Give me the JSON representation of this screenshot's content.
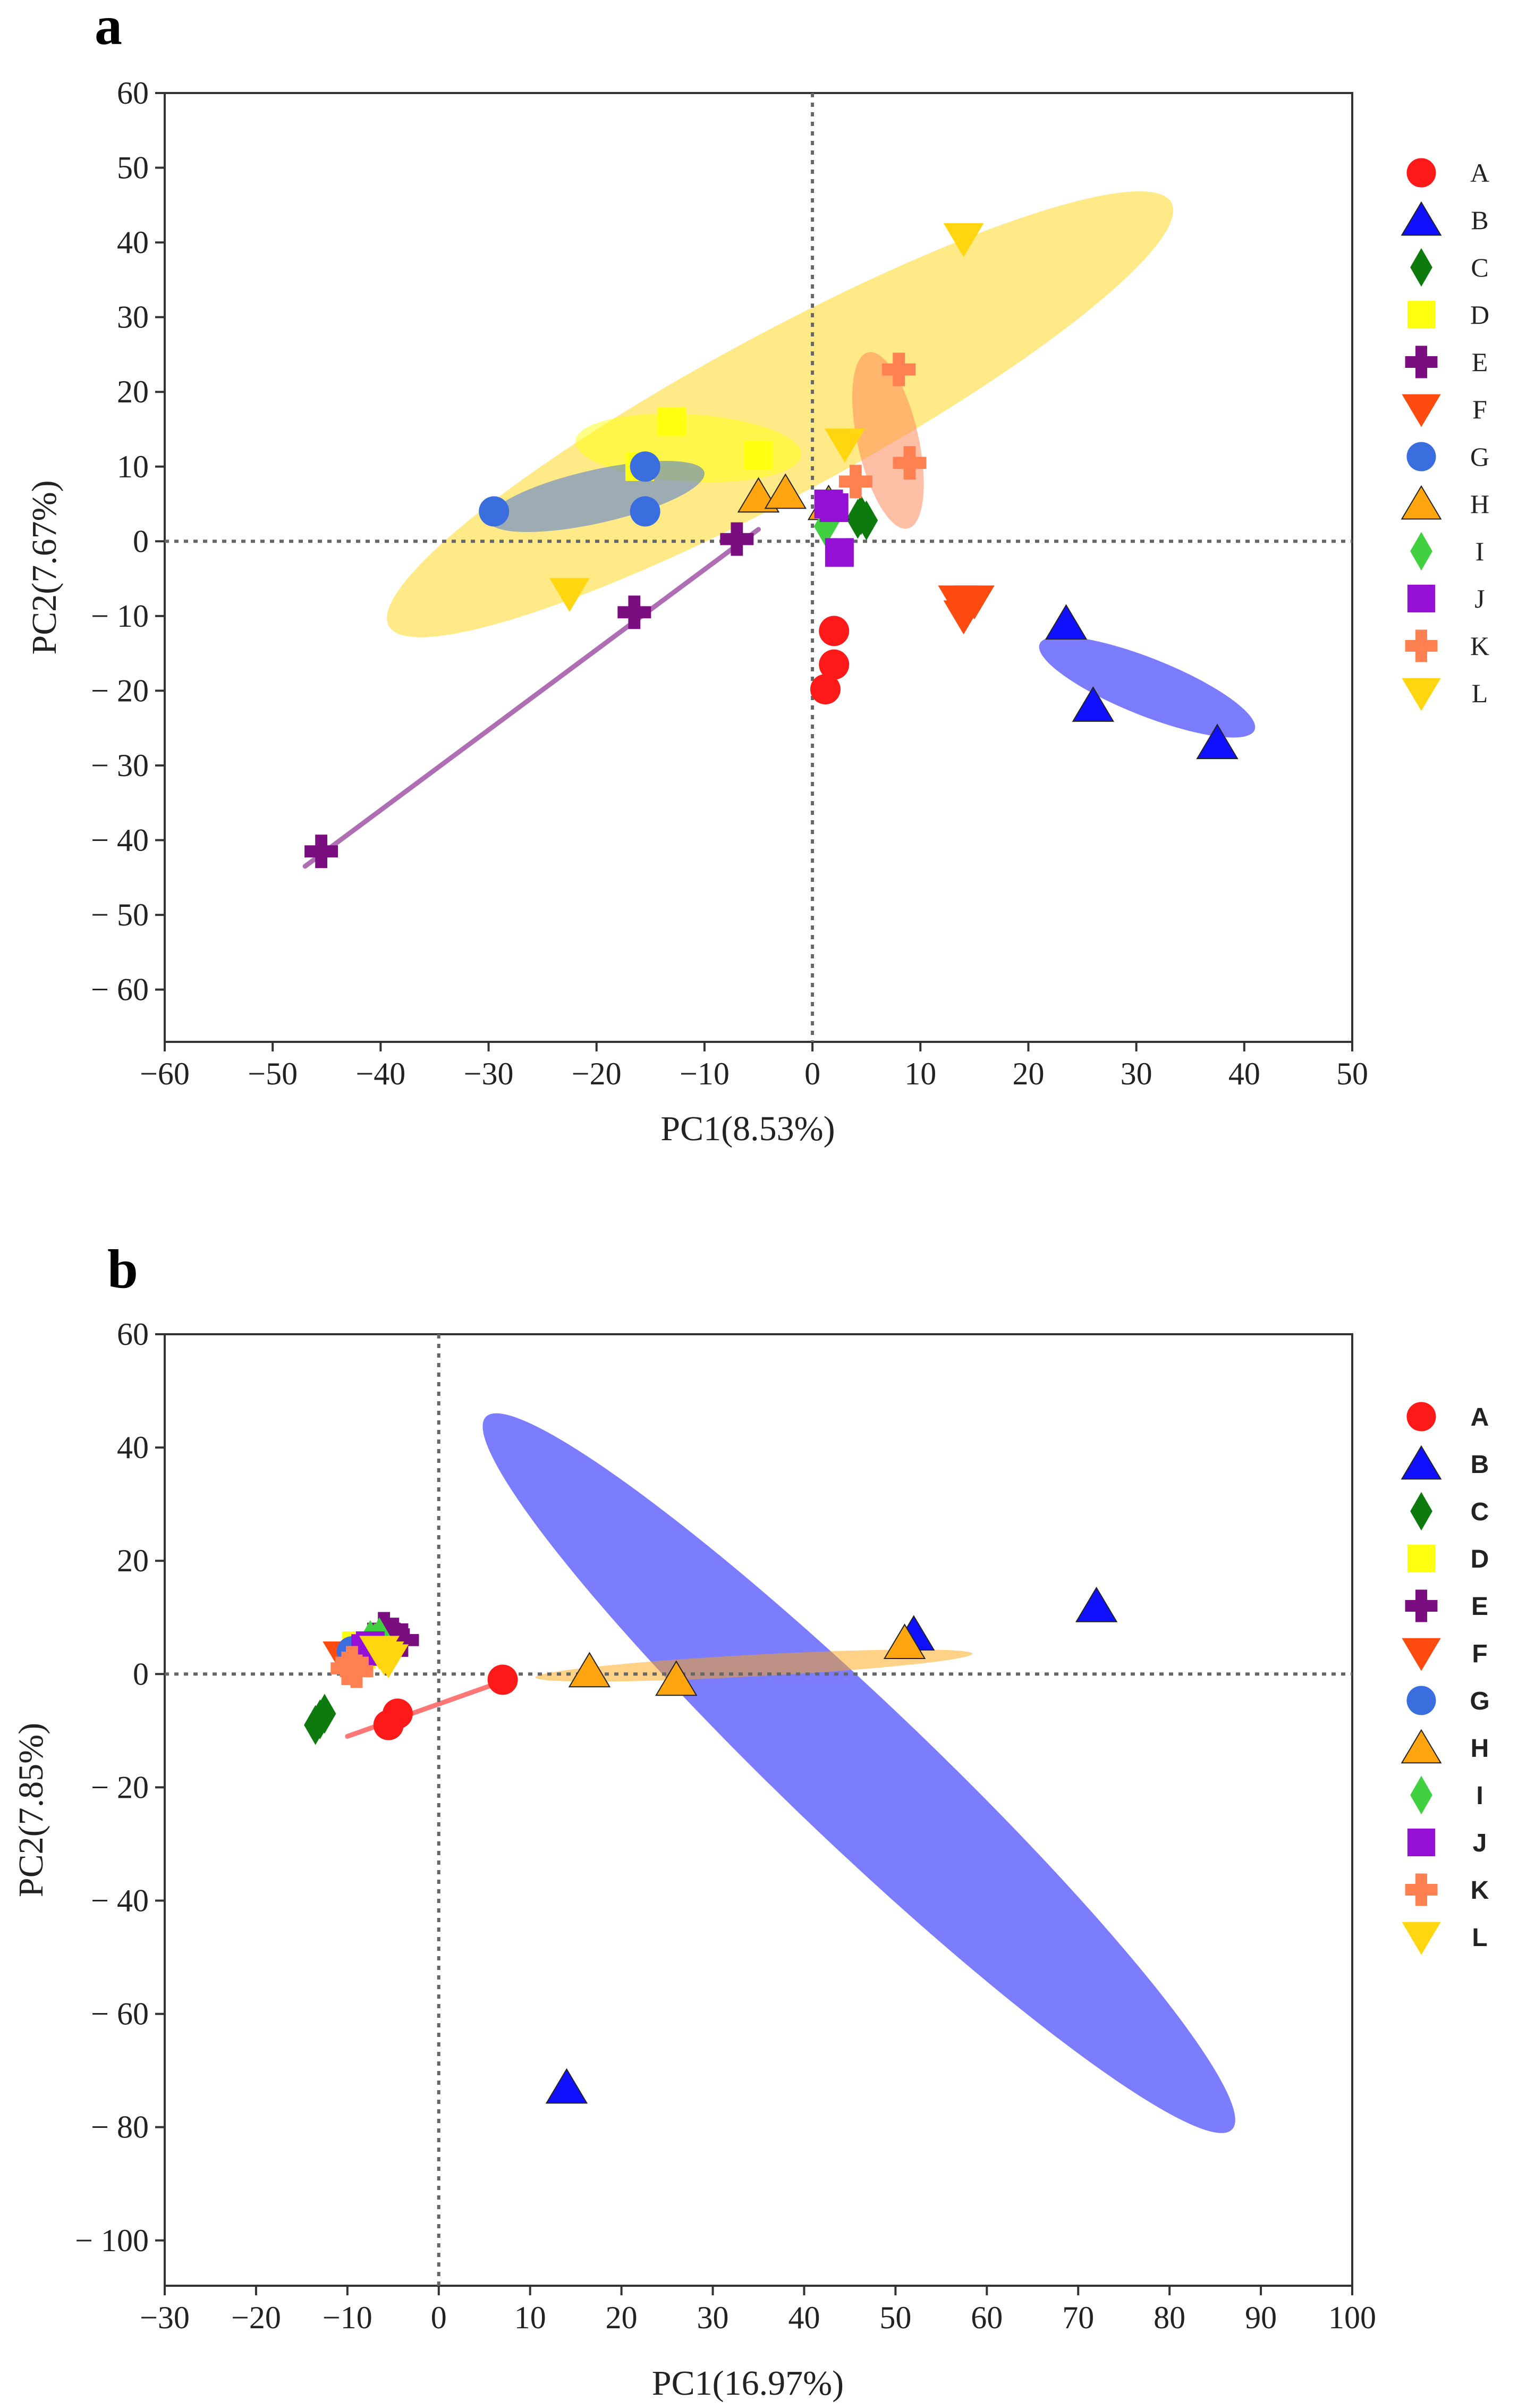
{
  "colors": {
    "A": "#ff1a1a",
    "B": "#1010ff",
    "C": "#0d7a0d",
    "D": "#ffff10",
    "E": "#7a0e80",
    "F": "#ff4a10",
    "G": "#3a6ede",
    "H": "#ffa510",
    "I": "#40d040",
    "J": "#9410d4",
    "K": "#ff8050",
    "L": "#ffd610"
  },
  "markers": {
    "A": "circle",
    "B": "triangle-up",
    "C": "diamond",
    "D": "square",
    "E": "plus",
    "F": "triangle-down",
    "G": "circle",
    "H": "triangle-up",
    "I": "diamond",
    "J": "square",
    "K": "plus",
    "L": "triangle-down"
  },
  "chart_data": [
    {
      "type": "scatter",
      "panel_label": "a",
      "xlabel": "PC1(8.53%)",
      "ylabel": "PC2(7.67%)",
      "xlim": [
        -60,
        50
      ],
      "ylim": [
        -67,
        60
      ],
      "xticks": [
        -60,
        -50,
        -40,
        -30,
        -20,
        -10,
        0,
        10,
        20,
        30,
        40,
        50
      ],
      "yticks": [
        60,
        50,
        40,
        30,
        20,
        10,
        0,
        -10,
        -20,
        -30,
        -40,
        -50,
        -60
      ],
      "reference_lines": {
        "x": 0,
        "y": 0,
        "style": "dotted"
      },
      "legend_placement": "right",
      "legend": [
        "A",
        "B",
        "C",
        "D",
        "E",
        "F",
        "G",
        "H",
        "I",
        "J",
        "K",
        "L"
      ],
      "series": [
        {
          "name": "A",
          "points": [
            [
              2,
              -12
            ],
            [
              2,
              -16.5
            ],
            [
              1.2,
              -19.8
            ]
          ]
        },
        {
          "name": "B",
          "points": [
            [
              23.5,
              -11
            ],
            [
              26,
              -22
            ],
            [
              37.5,
              -27
            ]
          ]
        },
        {
          "name": "C",
          "points": [
            [
              4.5,
              3.5
            ],
            [
              5,
              2.8
            ],
            [
              4.2,
              3
            ]
          ]
        },
        {
          "name": "D",
          "points": [
            [
              -13,
              16
            ],
            [
              -5,
              11.5
            ],
            [
              -16,
              10
            ]
          ]
        },
        {
          "name": "E",
          "points": [
            [
              -7,
              0.3
            ],
            [
              -16.5,
              -9.5
            ],
            [
              -45.5,
              -41.5
            ]
          ]
        },
        {
          "name": "F",
          "points": [
            [
              13.5,
              -8
            ],
            [
              14,
              -10
            ],
            [
              15,
              -8
            ]
          ]
        },
        {
          "name": "G",
          "points": [
            [
              -15.5,
              10
            ],
            [
              -29.5,
              4
            ],
            [
              -15.5,
              4
            ]
          ]
        },
        {
          "name": "H",
          "points": [
            [
              -5,
              6
            ],
            [
              -2.5,
              6.5
            ],
            [
              1.5,
              5
            ]
          ]
        },
        {
          "name": "I",
          "points": [
            [
              1.5,
              4.5
            ],
            [
              1.2,
              2
            ],
            [
              1.8,
              3.5
            ]
          ]
        },
        {
          "name": "J",
          "points": [
            [
              1.5,
              5
            ],
            [
              2.5,
              -1.5
            ],
            [
              2,
              4.5
            ]
          ]
        },
        {
          "name": "K",
          "points": [
            [
              8,
              23
            ],
            [
              9,
              10.5
            ],
            [
              4,
              8
            ]
          ]
        },
        {
          "name": "L",
          "points": [
            [
              14,
              40.5
            ],
            [
              3,
              13
            ],
            [
              -22.5,
              -7
            ]
          ]
        }
      ],
      "ellipses": [
        {
          "group": "L",
          "cx": -3,
          "cy": 17,
          "rx": 46,
          "ry": 9,
          "angle_deg": 38
        },
        {
          "group": "D",
          "cx": -11.5,
          "cy": 12.5,
          "rx": 10.5,
          "ry": 4.5,
          "angle_deg": -5
        },
        {
          "group": "G",
          "cx": -20,
          "cy": 6,
          "rx": 10.5,
          "ry": 3.4,
          "angle_deg": 18
        },
        {
          "group": "K",
          "cx": 7,
          "cy": 13.5,
          "rx": 2.9,
          "ry": 11.5,
          "angle_deg": 18
        },
        {
          "group": "B",
          "cx": 31,
          "cy": -19.5,
          "rx": 11.5,
          "ry": 3.4,
          "angle_deg": -30
        }
      ],
      "lines": [
        {
          "group": "E",
          "from": [
            -47,
            -43.5
          ],
          "to": [
            -5,
            1.6
          ]
        }
      ]
    },
    {
      "type": "scatter",
      "panel_label": "b",
      "xlabel": "PC1(16.97%)",
      "ylabel": "PC2(7.85%)",
      "xlim": [
        -30,
        100
      ],
      "ylim": [
        -108,
        60
      ],
      "xticks": [
        -30,
        -20,
        -10,
        0,
        10,
        20,
        30,
        40,
        50,
        60,
        70,
        80,
        90,
        100
      ],
      "yticks": [
        60,
        40,
        20,
        0,
        -20,
        -40,
        -60,
        -80,
        -100
      ],
      "reference_lines": {
        "x": 0,
        "y": 0,
        "style": "dotted"
      },
      "legend_placement": "right",
      "legend": [
        "A",
        "B",
        "C",
        "D",
        "E",
        "F",
        "G",
        "H",
        "I",
        "J",
        "K",
        "L"
      ],
      "series": [
        {
          "name": "A",
          "points": [
            [
              7,
              -1
            ],
            [
              -5.5,
              -9
            ],
            [
              -4.5,
              -7
            ]
          ]
        },
        {
          "name": "B",
          "points": [
            [
              52,
              7
            ],
            [
              72,
              12
            ],
            [
              14,
              -73
            ]
          ]
        },
        {
          "name": "C",
          "points": [
            [
              -13.5,
              -9
            ],
            [
              -12.5,
              -7
            ],
            [
              -13,
              -8
            ]
          ]
        },
        {
          "name": "D",
          "points": [
            [
              -9,
              5
            ],
            [
              -8,
              4
            ],
            [
              -8.5,
              3.5
            ]
          ]
        },
        {
          "name": "E",
          "points": [
            [
              -5,
              7
            ],
            [
              -4,
              6
            ],
            [
              -6,
              8
            ]
          ]
        },
        {
          "name": "F",
          "points": [
            [
              -10.5,
              3
            ],
            [
              -9,
              2
            ],
            [
              -10,
              2.5
            ]
          ]
        },
        {
          "name": "G",
          "points": [
            [
              -9.5,
              4
            ],
            [
              -8.5,
              3.8
            ],
            [
              -9,
              4.2
            ]
          ]
        },
        {
          "name": "H",
          "points": [
            [
              16.5,
              0.5
            ],
            [
              26,
              -1
            ],
            [
              51,
              5.5
            ]
          ]
        },
        {
          "name": "I",
          "points": [
            [
              -7.5,
              6
            ],
            [
              -6.5,
              6.5
            ],
            [
              -7,
              5.5
            ]
          ]
        },
        {
          "name": "J",
          "points": [
            [
              -8,
              4.5
            ],
            [
              -7.5,
              5
            ],
            [
              -7,
              4
            ]
          ]
        },
        {
          "name": "K",
          "points": [
            [
              -10,
              1
            ],
            [
              -9,
              0.5
            ],
            [
              -9.5,
              2
            ]
          ]
        },
        {
          "name": "L",
          "points": [
            [
              -6,
              3
            ],
            [
              -5.5,
              2.5
            ],
            [
              -6.5,
              4
            ]
          ]
        }
      ],
      "ellipses": [
        {
          "group": "B",
          "cx": 46,
          "cy": -17.5,
          "rx": 75,
          "ry": 8.5,
          "angle_deg": -57
        },
        {
          "group": "H",
          "cx": 34.5,
          "cy": 1.5,
          "rx": 24,
          "ry": 1.9,
          "angle_deg": 5
        }
      ],
      "lines": [
        {
          "group": "A",
          "from": [
            -10,
            -11
          ],
          "to": [
            7.5,
            -1
          ]
        }
      ]
    }
  ]
}
